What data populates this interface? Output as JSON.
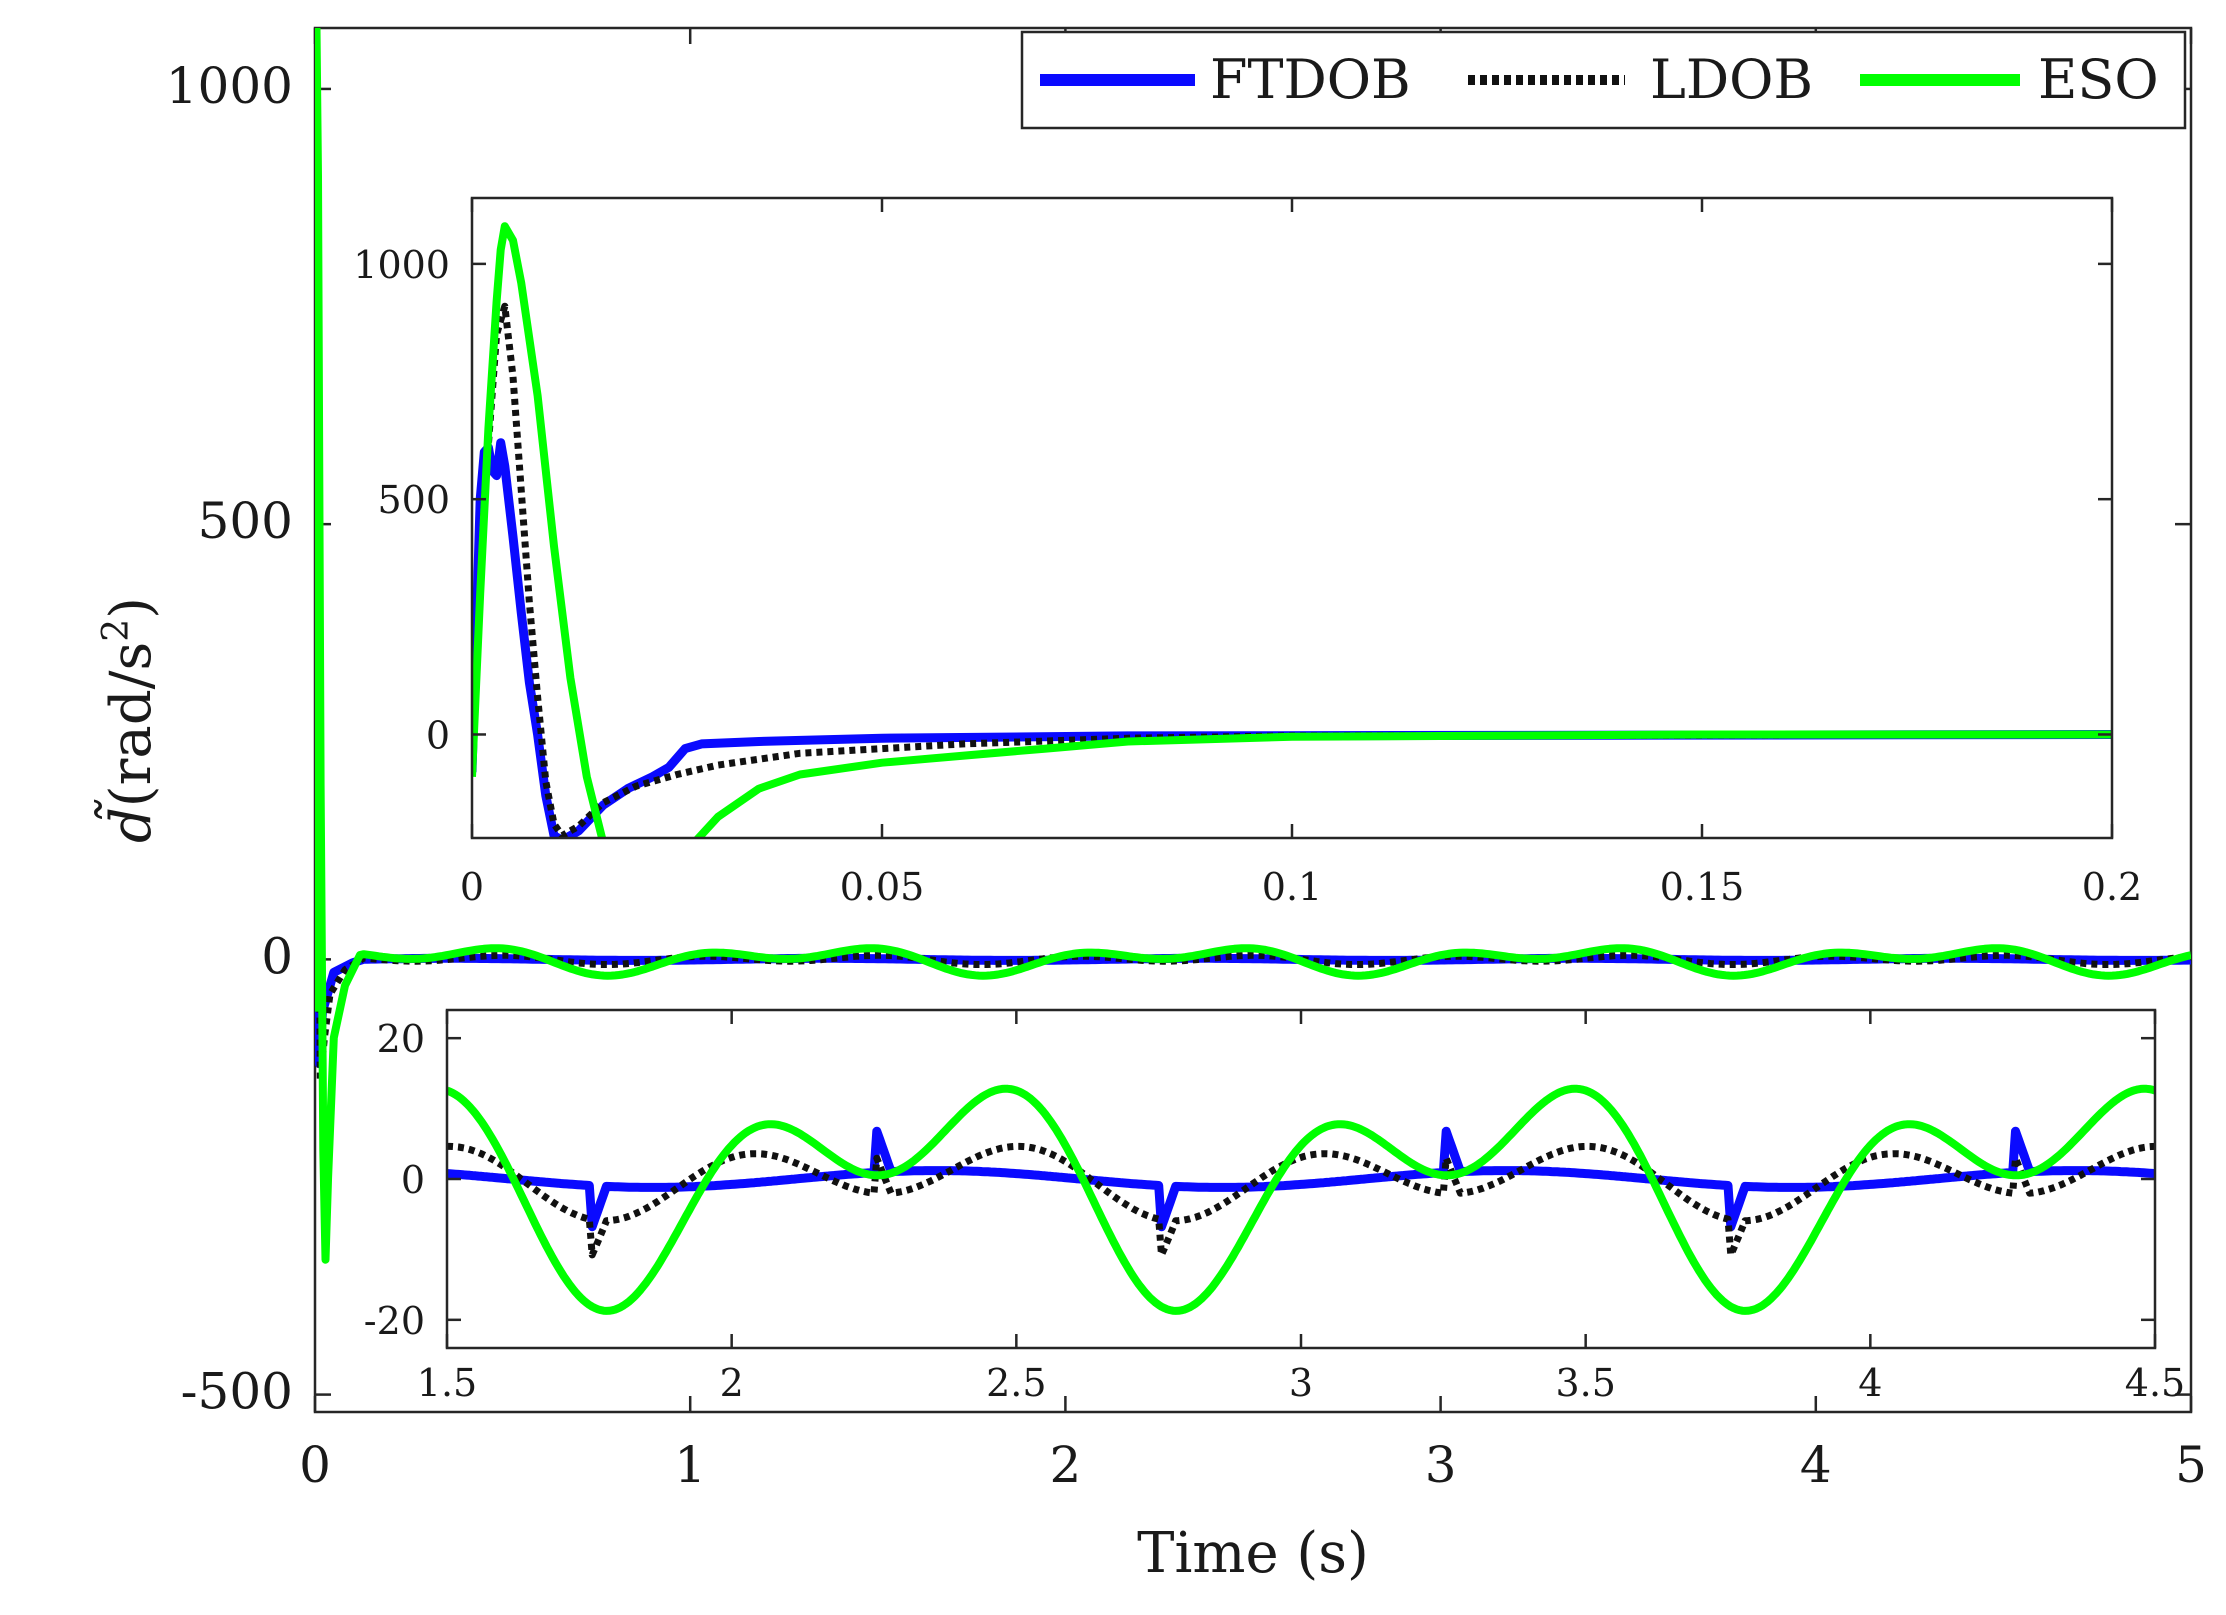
{
  "chart_data": [
    {
      "id": "main",
      "type": "line",
      "xlabel": "Time (s)",
      "ylabel_symbol": "d̃",
      "ylabel_units": "(rad/s",
      "ylabel_exp": "2",
      "ylabel_close": ")",
      "xlim": [
        0,
        5
      ],
      "ylim": [
        -520,
        1070
      ],
      "xticks": [
        0,
        1,
        2,
        3,
        4,
        5
      ],
      "xtick_labels": [
        "0",
        "1",
        "2",
        "3",
        "4",
        "5"
      ],
      "yticks": [
        -500,
        0,
        500,
        1000
      ],
      "ytick_labels": [
        "-500",
        "0",
        "500",
        "1000"
      ],
      "legend": {
        "position": "top-right",
        "entries": [
          {
            "label": "FTDOB",
            "color": "#0a0aff",
            "style": "solid"
          },
          {
            "label": "LDOB",
            "color": "#111111",
            "style": "dotted"
          },
          {
            "label": "ESO",
            "color": "#00ff00",
            "style": "solid"
          }
        ]
      },
      "series": [
        {
          "name": "FTDOB",
          "color": "#0a0aff",
          "points": [
            [
              0,
              0
            ],
            [
              0.002,
              600
            ],
            [
              0.004,
              590
            ],
            [
              0.012,
              -120
            ],
            [
              0.02,
              -60
            ],
            [
              0.03,
              -45
            ],
            [
              0.05,
              -15
            ],
            [
              0.1,
              -4
            ],
            [
              0.2,
              0
            ],
            [
              5,
              0
            ]
          ]
        },
        {
          "name": "LDOB",
          "color": "#111111",
          "points": [
            [
              0,
              0
            ],
            [
              0.003,
              630
            ],
            [
              0.006,
              520
            ],
            [
              0.014,
              -140
            ],
            [
              0.025,
              -90
            ],
            [
              0.04,
              -40
            ],
            [
              0.08,
              -12
            ],
            [
              0.15,
              -3
            ],
            [
              0.3,
              0
            ],
            [
              5,
              0
            ]
          ]
        },
        {
          "name": "ESO",
          "color": "#00ff00",
          "points": [
            [
              0,
              -60
            ],
            [
              0.004,
              1070
            ],
            [
              0.008,
              900
            ],
            [
              0.015,
              200
            ],
            [
              0.022,
              -220
            ],
            [
              0.028,
              -345
            ],
            [
              0.035,
              -250
            ],
            [
              0.05,
              -90
            ],
            [
              0.08,
              -30
            ],
            [
              0.12,
              5
            ],
            [
              5,
              0
            ]
          ]
        }
      ]
    },
    {
      "id": "inset-top",
      "type": "line",
      "xlim": [
        0,
        0.2
      ],
      "ylim": [
        -220,
        1140
      ],
      "xticks": [
        0,
        0.05,
        0.1,
        0.15,
        0.2
      ],
      "xtick_labels": [
        "0",
        "0.05",
        "0.1",
        "0.15",
        "0.2"
      ],
      "yticks": [
        0,
        500,
        1000
      ],
      "ytick_labels": [
        "0",
        "500",
        "1000"
      ],
      "series": [
        {
          "name": "FTDOB",
          "color": "#0a0aff",
          "points": [
            [
              0,
              -80
            ],
            [
              0.001,
              500
            ],
            [
              0.0015,
              600
            ],
            [
              0.002,
              610
            ],
            [
              0.0025,
              560
            ],
            [
              0.003,
              550
            ],
            [
              0.0035,
              620
            ],
            [
              0.004,
              570
            ],
            [
              0.005,
              420
            ],
            [
              0.006,
              260
            ],
            [
              0.007,
              110
            ],
            [
              0.008,
              0
            ],
            [
              0.009,
              -130
            ],
            [
              0.01,
              -215
            ],
            [
              0.011,
              -225
            ],
            [
              0.013,
              -205
            ],
            [
              0.016,
              -150
            ],
            [
              0.019,
              -115
            ],
            [
              0.022,
              -90
            ],
            [
              0.024,
              -70
            ],
            [
              0.026,
              -30
            ],
            [
              0.028,
              -20
            ],
            [
              0.035,
              -15
            ],
            [
              0.05,
              -8
            ],
            [
              0.08,
              -3
            ],
            [
              0.2,
              0
            ]
          ]
        },
        {
          "name": "LDOB",
          "color": "#111111",
          "points": [
            [
              0,
              -80
            ],
            [
              0.0015,
              500
            ],
            [
              0.003,
              850
            ],
            [
              0.004,
              910
            ],
            [
              0.005,
              760
            ],
            [
              0.006,
              520
            ],
            [
              0.007,
              280
            ],
            [
              0.008,
              80
            ],
            [
              0.009,
              -100
            ],
            [
              0.01,
              -190
            ],
            [
              0.011,
              -215
            ],
            [
              0.013,
              -195
            ],
            [
              0.016,
              -145
            ],
            [
              0.02,
              -110
            ],
            [
              0.025,
              -85
            ],
            [
              0.03,
              -65
            ],
            [
              0.04,
              -40
            ],
            [
              0.06,
              -20
            ],
            [
              0.08,
              -8
            ],
            [
              0.1,
              -3
            ],
            [
              0.2,
              0
            ]
          ]
        },
        {
          "name": "ESO",
          "color": "#00ff00",
          "points": [
            [
              0,
              -90
            ],
            [
              0.001,
              300
            ],
            [
              0.002,
              650
            ],
            [
              0.003,
              920
            ],
            [
              0.0035,
              1030
            ],
            [
              0.004,
              1080
            ],
            [
              0.005,
              1050
            ],
            [
              0.006,
              960
            ],
            [
              0.008,
              720
            ],
            [
              0.01,
              400
            ],
            [
              0.012,
              120
            ],
            [
              0.014,
              -90
            ],
            [
              0.016,
              -230
            ],
            [
              0.018,
              -315
            ],
            [
              0.02,
              -340
            ],
            [
              0.022,
              -325
            ],
            [
              0.025,
              -270
            ],
            [
              0.03,
              -175
            ],
            [
              0.035,
              -115
            ],
            [
              0.04,
              -85
            ],
            [
              0.05,
              -60
            ],
            [
              0.06,
              -45
            ],
            [
              0.07,
              -30
            ],
            [
              0.08,
              -15
            ],
            [
              0.1,
              -5
            ],
            [
              0.15,
              0
            ],
            [
              0.2,
              0
            ]
          ]
        }
      ]
    },
    {
      "id": "inset-bottom",
      "type": "line",
      "xlim": [
        1.5,
        4.5
      ],
      "ylim": [
        -24,
        24
      ],
      "xticks": [
        1.5,
        2,
        2.5,
        3,
        3.5,
        4,
        4.5
      ],
      "xtick_labels": [
        "1.5",
        "2",
        "2.5",
        "3",
        "3.5",
        "4",
        "4.5"
      ],
      "yticks": [
        -20,
        0,
        20
      ],
      "ytick_labels": [
        "-20",
        "0",
        "20"
      ],
      "period_s": 1,
      "waveform_terms": {
        "ESO": [
          [
            10,
            6.283,
            -0.4
          ],
          [
            9,
            12.566,
            1.3
          ]
        ],
        "LDOB": [
          [
            2,
            6.283,
            -0.4
          ],
          [
            4,
            12.566,
            1.3
          ]
        ],
        "FTDOB": [
          [
            1.2,
            6.283,
            -0.7
          ]
        ]
      },
      "spike_times": [
        1.75,
        2.25,
        2.75,
        3.25,
        3.75,
        4.25
      ]
    }
  ]
}
